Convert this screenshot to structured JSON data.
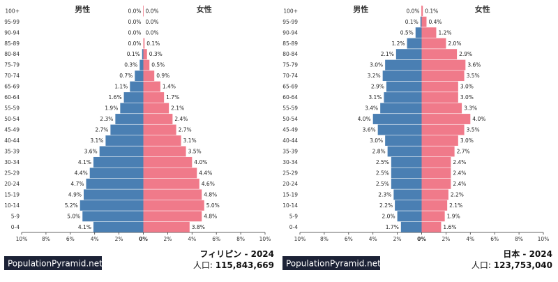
{
  "colors": {
    "male": "#4a7fb3",
    "female": "#f07a8a",
    "axis": "#333333",
    "grid": "#dddddd",
    "brand_bg": "#1c2236"
  },
  "chart_data": [
    {
      "type": "bar",
      "orientation": "horizontal-pyramid",
      "country": "フィリピン",
      "year": "2024",
      "title": "フィリピン - 2024",
      "population_label": "人口:",
      "population": "115,843,669",
      "brand": "PopulationPyramid.net",
      "male_label": "男性",
      "female_label": "女性",
      "xlim": [
        -10,
        10
      ],
      "x_ticks": [
        "10%",
        "8%",
        "6%",
        "4%",
        "2%",
        "0%",
        "2%",
        "4%",
        "6%",
        "8%",
        "10%"
      ],
      "categories": [
        "100+",
        "95-99",
        "90-94",
        "85-89",
        "80-84",
        "75-79",
        "70-74",
        "65-69",
        "60-64",
        "55-59",
        "50-54",
        "45-49",
        "40-44",
        "35-39",
        "30-34",
        "25-29",
        "20-24",
        "15-19",
        "10-14",
        "5-9",
        "0-4"
      ],
      "series": [
        {
          "name": "男性",
          "values": [
            0.0,
            0.0,
            0.0,
            0.0,
            0.1,
            0.3,
            0.7,
            1.1,
            1.6,
            1.9,
            2.3,
            2.7,
            3.1,
            3.6,
            4.1,
            4.4,
            4.7,
            4.9,
            5.2,
            5.0,
            4.1
          ]
        },
        {
          "name": "女性",
          "values": [
            0.0,
            0.0,
            0.0,
            0.1,
            0.3,
            0.5,
            0.9,
            1.4,
            1.7,
            2.1,
            2.4,
            2.7,
            3.1,
            3.5,
            4.0,
            4.4,
            4.6,
            4.8,
            5.0,
            4.8,
            3.8
          ]
        }
      ]
    },
    {
      "type": "bar",
      "orientation": "horizontal-pyramid",
      "country": "日本",
      "year": "2024",
      "title": "日本 - 2024",
      "population_label": "人口:",
      "population": "123,753,040",
      "brand": "PopulationPyramid.net",
      "male_label": "男性",
      "female_label": "女性",
      "xlim": [
        -10,
        10
      ],
      "x_ticks": [
        "10%",
        "8%",
        "6%",
        "4%",
        "2%",
        "0%",
        "2%",
        "4%",
        "6%",
        "8%",
        "10%"
      ],
      "categories": [
        "100+",
        "95-99",
        "90-94",
        "85-89",
        "80-84",
        "75-79",
        "70-74",
        "65-69",
        "60-64",
        "55-59",
        "50-54",
        "45-49",
        "40-44",
        "35-39",
        "30-34",
        "25-29",
        "20-24",
        "15-19",
        "10-14",
        "5-9",
        "0-4"
      ],
      "series": [
        {
          "name": "男性",
          "values": [
            0.0,
            0.1,
            0.5,
            1.2,
            2.1,
            3.0,
            3.2,
            2.9,
            3.1,
            3.4,
            4.0,
            3.6,
            3.0,
            2.8,
            2.5,
            2.5,
            2.5,
            2.3,
            2.2,
            2.0,
            1.7
          ]
        },
        {
          "name": "女性",
          "values": [
            0.1,
            0.4,
            1.2,
            2.0,
            2.9,
            3.6,
            3.5,
            3.0,
            3.0,
            3.3,
            4.0,
            3.5,
            3.0,
            2.7,
            2.4,
            2.4,
            2.4,
            2.2,
            2.1,
            1.9,
            1.6
          ]
        }
      ]
    }
  ]
}
